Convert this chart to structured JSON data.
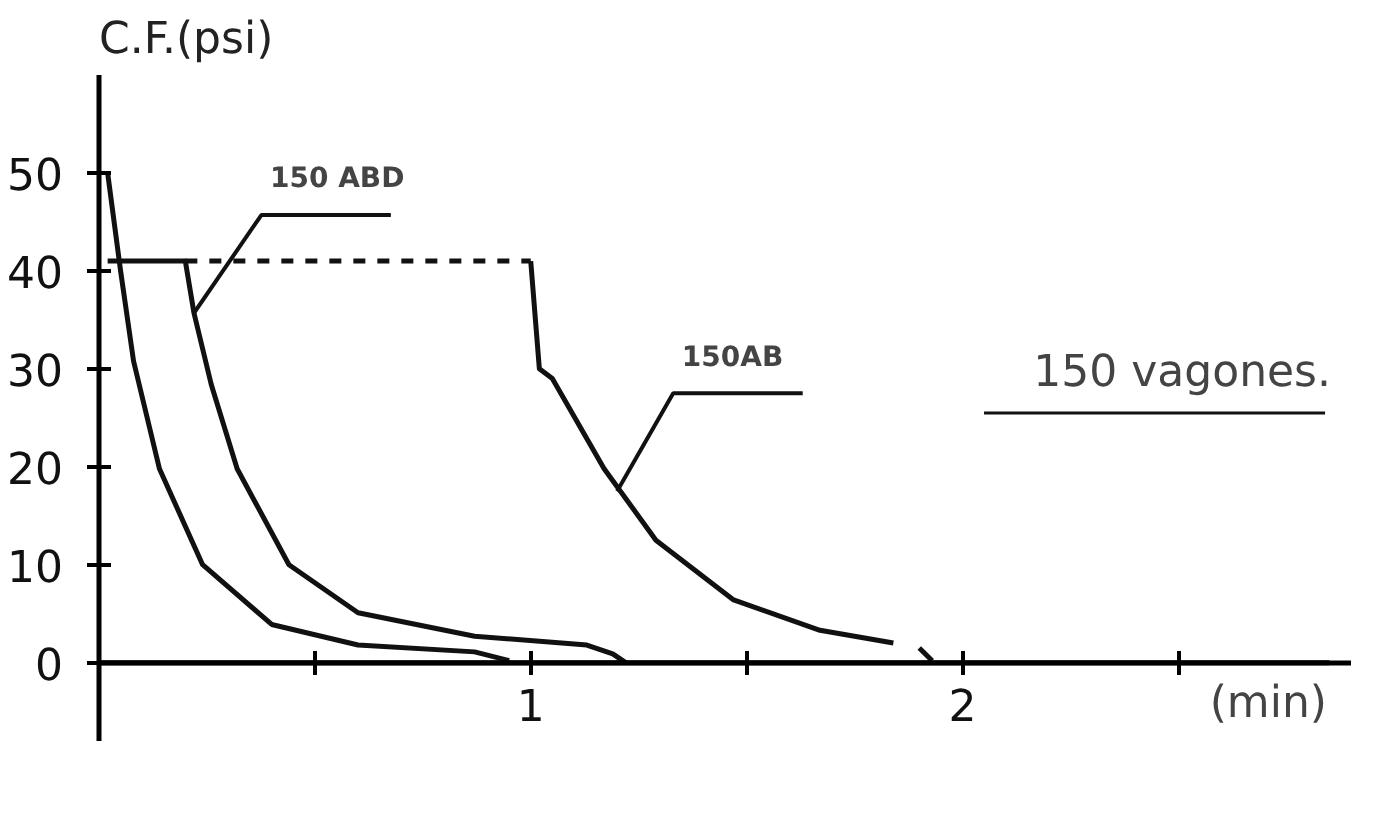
{
  "chart_data": {
    "type": "line",
    "xlabel": "(min)",
    "ylabel": "C.F.(psi)",
    "xlim": [
      0,
      2.9
    ],
    "ylim": [
      -8,
      60
    ],
    "xticks": [
      {
        "value": 0.5,
        "label": null
      },
      1,
      {
        "value": 1.5,
        "label": null
      },
      2,
      {
        "value": 2.5,
        "label": null
      }
    ],
    "yticks": [
      0,
      10,
      20,
      30,
      40,
      50
    ],
    "grid": false,
    "marker": "none",
    "series": [
      {
        "color": "#111111",
        "line_style": "solid",
        "x": [
          0.02,
          0.05,
          0.08,
          0.14,
          0.24,
          0.4,
          0.6,
          0.87,
          0.95
        ],
        "values": [
          50,
          40,
          30.8,
          19.8,
          10,
          3.9,
          1.8,
          1.1,
          0.2
        ]
      },
      {
        "color": "#111111",
        "line_style": "solid",
        "x": [
          0.02,
          0.2,
          0.22,
          0.26,
          0.32,
          0.44,
          0.6,
          0.87,
          1.13,
          1.19,
          1.22
        ],
        "values": [
          41,
          41,
          35.7,
          28.4,
          19.8,
          10,
          5.1,
          2.7,
          1.8,
          0.9,
          0
        ]
      },
      {
        "color": "#111111",
        "line_style": "dashed",
        "x": [
          0.2,
          1.0
        ],
        "values": [
          41,
          41
        ]
      },
      {
        "color": "#111111",
        "line_style": "solid",
        "x": [
          1.0,
          1.02,
          1.05,
          1.17,
          1.29,
          1.47,
          1.67,
          1.84
        ],
        "values": [
          41,
          30,
          29,
          19.8,
          12.5,
          6.4,
          3.3,
          2
        ]
      },
      {
        "color": "#111111",
        "line_style": "solid",
        "x": [
          1.9,
          1.93
        ],
        "values": [
          1.5,
          0.2
        ]
      }
    ],
    "annotations": [
      {
        "text": "150 ABD",
        "x": 0.22,
        "y": 35.7
      },
      {
        "text": "150AB",
        "x": 1.2,
        "y": 17.5
      },
      "150 vagones."
    ]
  }
}
